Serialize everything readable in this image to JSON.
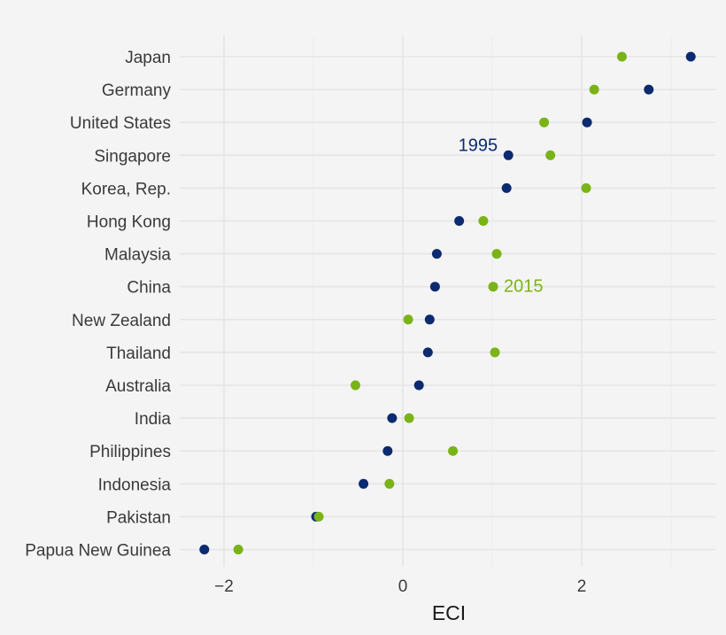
{
  "chart_data": {
    "type": "scatter",
    "subtype": "dot-plot",
    "title": "",
    "xlabel": "ECI",
    "ylabel": "",
    "xlim": [
      -2.5,
      3.5
    ],
    "x_ticks": [
      -2,
      0,
      2
    ],
    "x_tick_labels": [
      "−2",
      "0",
      "2"
    ],
    "grid": true,
    "categories": [
      "Japan",
      "Germany",
      "United States",
      "Singapore",
      "Korea, Rep.",
      "Hong Kong",
      "Malaysia",
      "China",
      "New Zealand",
      "Thailand",
      "Australia",
      "India",
      "Philippines",
      "Indonesia",
      "Pakistan",
      "Papua New Guinea"
    ],
    "series": [
      {
        "name": "1995",
        "color": "#0b2a6f",
        "values": [
          3.22,
          2.75,
          2.06,
          1.18,
          1.16,
          0.63,
          0.38,
          0.36,
          0.3,
          0.28,
          0.18,
          -0.12,
          -0.17,
          -0.44,
          -0.97,
          -2.22
        ]
      },
      {
        "name": "2015",
        "color": "#7ab317",
        "values": [
          2.45,
          2.14,
          1.58,
          1.65,
          2.05,
          0.9,
          1.05,
          1.01,
          0.06,
          1.03,
          -0.53,
          0.07,
          0.56,
          -0.15,
          -0.94,
          -1.84
        ]
      }
    ],
    "annotations": [
      {
        "text": "1995",
        "series": "1995",
        "category": "Singapore"
      },
      {
        "text": "2015",
        "series": "2015",
        "category": "China"
      }
    ],
    "legend": "none"
  }
}
